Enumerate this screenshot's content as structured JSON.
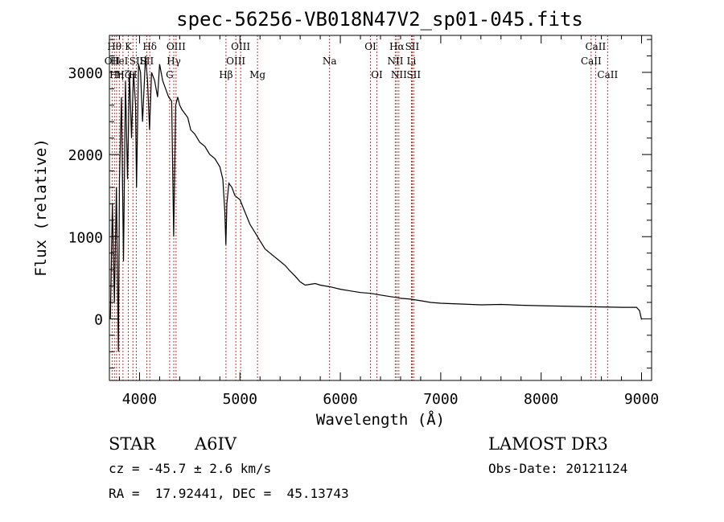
{
  "chart_data": {
    "type": "line",
    "title": "spec-56256-VB018N47V2_sp01-045.fits",
    "xlabel": "Wavelength (Å)",
    "ylabel": "Flux (relative)",
    "xlim": [
      3700,
      9100
    ],
    "ylim": [
      -750,
      3450
    ],
    "xticks": [
      {
        "value": 4000,
        "label": "4000"
      },
      {
        "value": 5000,
        "label": "5000"
      },
      {
        "value": 6000,
        "label": "6000"
      },
      {
        "value": 7000,
        "label": "7000"
      },
      {
        "value": 8000,
        "label": "8000"
      },
      {
        "value": 9000,
        "label": "9000"
      }
    ],
    "yticks": [
      {
        "value": 0,
        "label": "0"
      },
      {
        "value": 1000,
        "label": "1000"
      },
      {
        "value": 2000,
        "label": "2000"
      },
      {
        "value": 3000,
        "label": "3000"
      }
    ],
    "line_color": "#b22222",
    "series": [
      {
        "name": "spectrum",
        "color": "#000000",
        "x": [
          3710,
          3730,
          3750,
          3770,
          3790,
          3800,
          3820,
          3840,
          3860,
          3880,
          3900,
          3920,
          3940,
          3960,
          3970,
          3990,
          4010,
          4030,
          4060,
          4080,
          4100,
          4120,
          4150,
          4180,
          4200,
          4230,
          4260,
          4290,
          4320,
          4340,
          4360,
          4380,
          4400,
          4420,
          4450,
          4480,
          4510,
          4550,
          4600,
          4650,
          4700,
          4750,
          4800,
          4830,
          4850,
          4860,
          4870,
          4890,
          4920,
          4950,
          5000,
          5050,
          5100,
          5150,
          5200,
          5250,
          5300,
          5350,
          5400,
          5450,
          5500,
          5550,
          5600,
          5650,
          5700,
          5750,
          5800,
          5900,
          6000,
          6100,
          6200,
          6300,
          6400,
          6500,
          6560,
          6600,
          6700,
          6800,
          6900,
          7000,
          7200,
          7400,
          7600,
          7800,
          8000,
          8200,
          8400,
          8600,
          8800,
          8950,
          8980,
          9000
        ],
        "y": [
          0,
          1400,
          200,
          1600,
          -400,
          1700,
          2700,
          700,
          2900,
          1700,
          3000,
          2200,
          3000,
          2600,
          1600,
          3100,
          3000,
          2400,
          3200,
          2900,
          2300,
          3000,
          2900,
          2700,
          3100,
          2900,
          2800,
          2700,
          2650,
          1000,
          2600,
          2700,
          2600,
          2550,
          2500,
          2450,
          2300,
          2250,
          2150,
          2100,
          2000,
          1950,
          1850,
          1700,
          1300,
          900,
          1400,
          1650,
          1600,
          1500,
          1450,
          1300,
          1150,
          1050,
          950,
          850,
          800,
          750,
          700,
          650,
          580,
          520,
          450,
          410,
          420,
          430,
          410,
          390,
          360,
          340,
          320,
          310,
          290,
          270,
          260,
          250,
          240,
          220,
          200,
          190,
          180,
          170,
          175,
          165,
          160,
          155,
          150,
          145,
          140,
          140,
          100,
          -10
        ]
      }
    ],
    "lines": [
      {
        "wl": 3727,
        "label": "OII",
        "row": 1
      },
      {
        "wl": 3750,
        "label": "Hθ",
        "row": 0
      },
      {
        "wl": 3771,
        "label": "Hη",
        "row": 2
      },
      {
        "wl": 3798,
        "label": "HeI",
        "row": 1
      },
      {
        "wl": 3835,
        "label": "Hζ",
        "row": 2
      },
      {
        "wl": 3889,
        "label": "K",
        "row": 0
      },
      {
        "wl": 3934,
        "label": "H",
        "row": 2
      },
      {
        "wl": 3969,
        "label": "SII",
        "row": 1
      },
      {
        "wl": 4072,
        "label": "SII",
        "row": 1
      },
      {
        "wl": 4102,
        "label": "Hδ",
        "row": 0
      },
      {
        "wl": 4300,
        "label": "G",
        "row": 2
      },
      {
        "wl": 4341,
        "label": "Hγ",
        "row": 1
      },
      {
        "wl": 4364,
        "label": "OIII",
        "row": 0
      },
      {
        "wl": 4861,
        "label": "Hβ",
        "row": 2
      },
      {
        "wl": 4959,
        "label": "OIII",
        "row": 1
      },
      {
        "wl": 5007,
        "label": "OIII",
        "row": 0
      },
      {
        "wl": 5175,
        "label": "Mg",
        "row": 2
      },
      {
        "wl": 5893,
        "label": "Na",
        "row": 1
      },
      {
        "wl": 6300,
        "label": "OI",
        "row": 0
      },
      {
        "wl": 6364,
        "label": "OI",
        "row": 2
      },
      {
        "wl": 6548,
        "label": "NII",
        "row": 1
      },
      {
        "wl": 6563,
        "label": "Hα",
        "row": 0
      },
      {
        "wl": 6583,
        "label": "NII",
        "row": 2
      },
      {
        "wl": 6708,
        "label": "Li",
        "row": 1
      },
      {
        "wl": 6716,
        "label": "SII",
        "row": 0
      },
      {
        "wl": 6731,
        "label": "SII",
        "row": 2
      },
      {
        "wl": 8498,
        "label": "CaII",
        "row": 1
      },
      {
        "wl": 8542,
        "label": "CaII",
        "row": 0
      },
      {
        "wl": 8662,
        "label": "CaII",
        "row": 2
      }
    ]
  },
  "info": {
    "class": "STAR",
    "subclass": "A6IV",
    "survey": "LAMOST DR3",
    "cz": "cz = -45.7 ± 2.6 km/s",
    "obs_date": "Obs-Date: 20121124",
    "coords": "RA =  17.92441, DEC =  45.13743"
  }
}
